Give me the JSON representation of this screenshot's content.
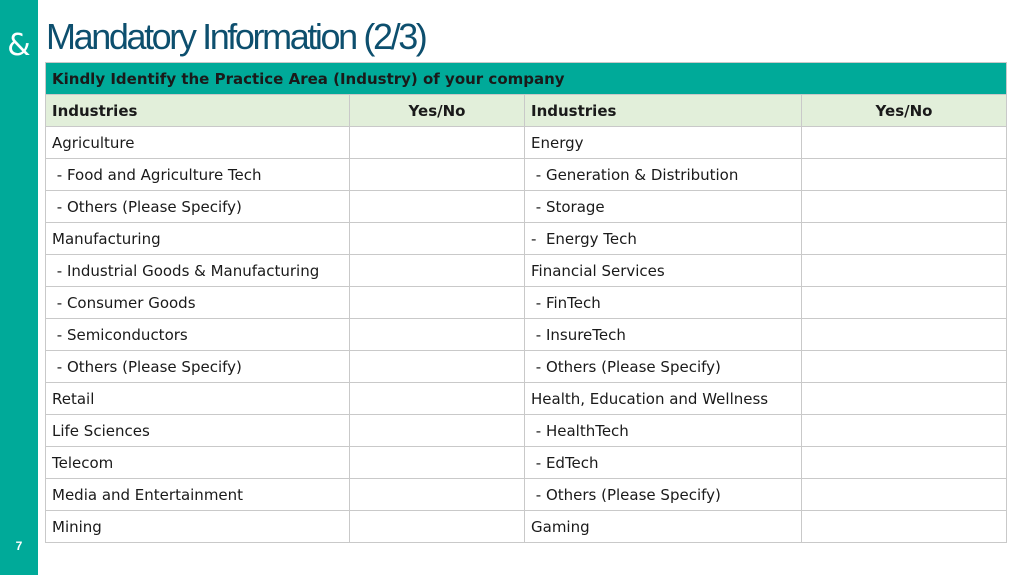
{
  "page": {
    "title": "Mandatory Information (2/3)",
    "number": "7",
    "logo_glyph": "&"
  },
  "table": {
    "banner": "Kindly Identify the Practice Area (Industry) of your company",
    "headers": [
      "Industries",
      "Yes/No",
      "Industries",
      "Yes/No"
    ],
    "rows": [
      {
        "left": "Agriculture",
        "right": "Energy"
      },
      {
        "left": " - Food and Agriculture Tech",
        "right": " - Generation & Distribution"
      },
      {
        "left": " - Others (Please Specify)",
        "right": " - Storage"
      },
      {
        "left": "Manufacturing",
        "right": "-  Energy Tech"
      },
      {
        "left": " - Industrial Goods & Manufacturing",
        "right": "Financial Services"
      },
      {
        "left": " - Consumer Goods",
        "right": " - FinTech"
      },
      {
        "left": " - Semiconductors",
        "right": " - InsureTech"
      },
      {
        "left": " - Others (Please Specify)",
        "right": " - Others (Please Specify)"
      },
      {
        "left": "Retail",
        "right": "Health, Education and Wellness"
      },
      {
        "left": "Life Sciences",
        "right": " - HealthTech"
      },
      {
        "left": "Telecom",
        "right": " - EdTech"
      },
      {
        "left": "Media and Entertainment",
        "right": " - Others (Please Specify)"
      },
      {
        "left": "Mining",
        "right": "Gaming"
      }
    ]
  },
  "colors": {
    "accent": "#00aa99",
    "title": "#0d4f6e",
    "header_bg": "#e2efda"
  }
}
